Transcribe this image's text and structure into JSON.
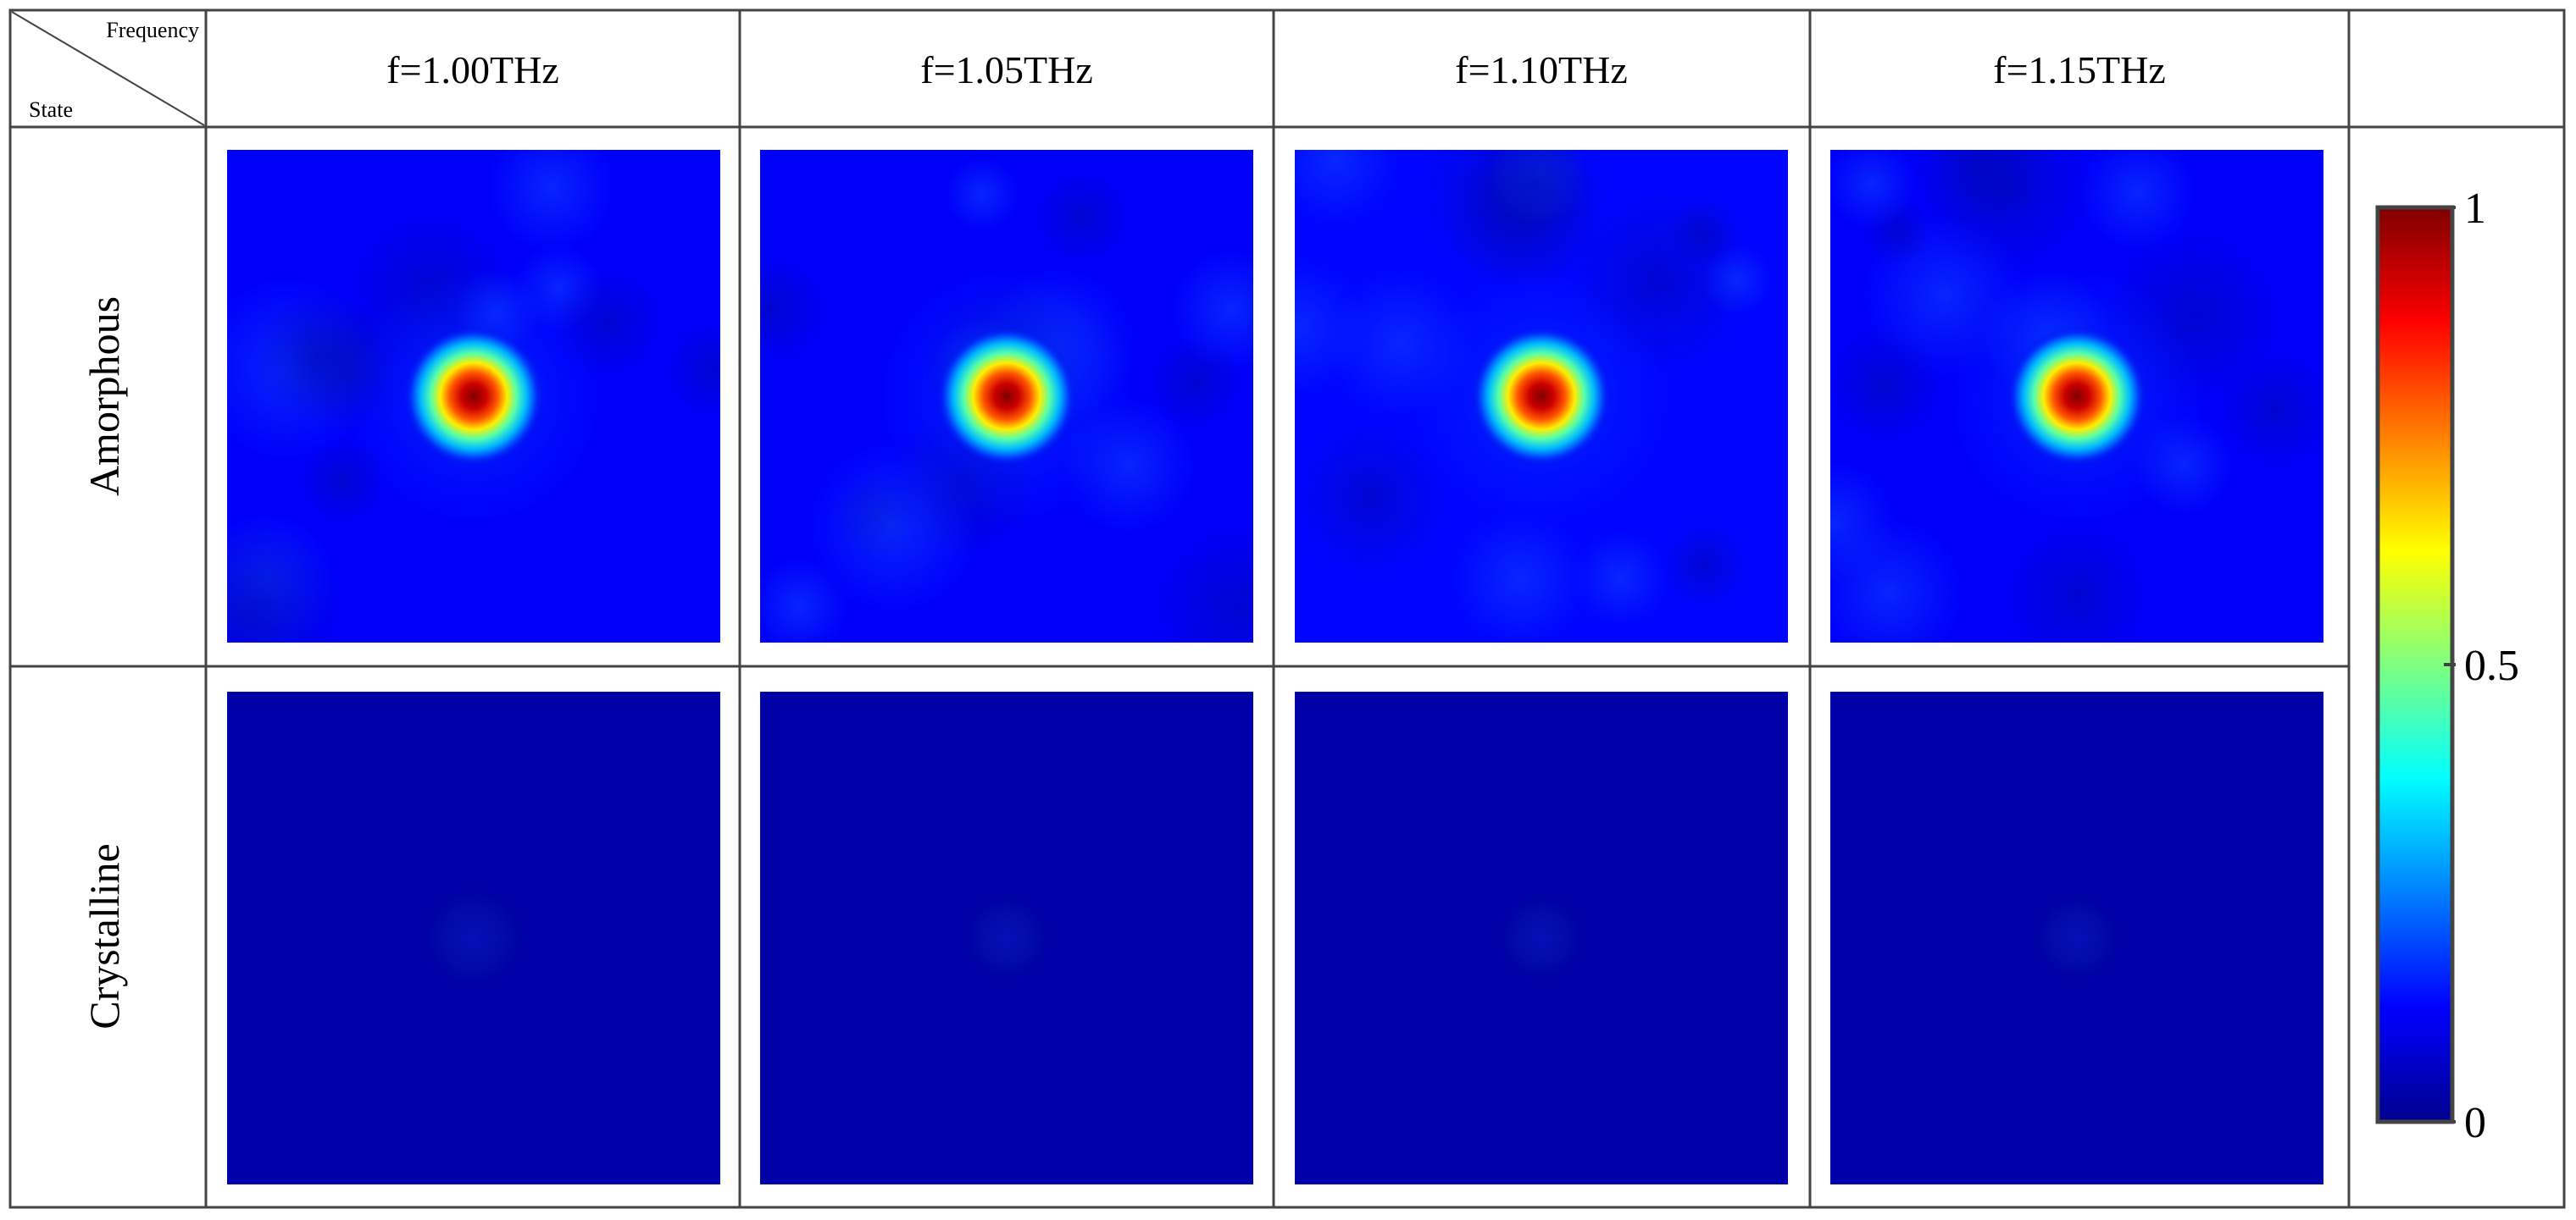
{
  "chart_data": {
    "type": "heatmap",
    "corner_header": {
      "column_label": "Frequency",
      "row_label": "State"
    },
    "columns": [
      "f=1.00THz",
      "f=1.05THz",
      "f=1.10THz",
      "f=1.15THz"
    ],
    "rows": [
      "Amorphous",
      "Crystalline"
    ],
    "colorbar": {
      "range": [
        0,
        1
      ],
      "ticks": [
        {
          "value": 1,
          "label": "1"
        },
        {
          "value": 0.5,
          "label": "0.5"
        },
        {
          "value": 0,
          "label": "0"
        }
      ],
      "colormap": "jet"
    },
    "cells": [
      {
        "row": "Amorphous",
        "column": "f=1.00THz",
        "peak_value": 1.0,
        "background_level": 0.12
      },
      {
        "row": "Amorphous",
        "column": "f=1.05THz",
        "peak_value": 1.0,
        "background_level": 0.12
      },
      {
        "row": "Amorphous",
        "column": "f=1.10THz",
        "peak_value": 1.0,
        "background_level": 0.13
      },
      {
        "row": "Amorphous",
        "column": "f=1.15THz",
        "peak_value": 1.0,
        "background_level": 0.12
      },
      {
        "row": "Crystalline",
        "column": "f=1.00THz",
        "peak_value": 0.07,
        "background_level": 0.04
      },
      {
        "row": "Crystalline",
        "column": "f=1.05THz",
        "peak_value": 0.06,
        "background_level": 0.04
      },
      {
        "row": "Crystalline",
        "column": "f=1.10THz",
        "peak_value": 0.06,
        "background_level": 0.04
      },
      {
        "row": "Crystalline",
        "column": "f=1.15THz",
        "peak_value": 0.06,
        "background_level": 0.04
      }
    ]
  }
}
